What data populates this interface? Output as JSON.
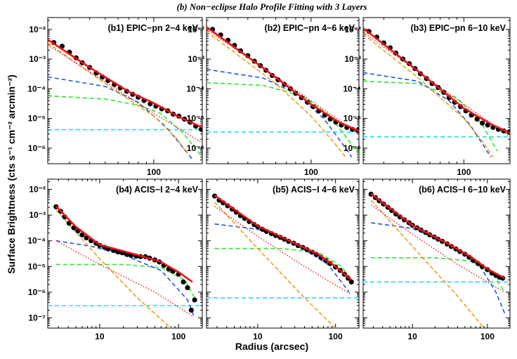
{
  "chart_data": {
    "type": "line",
    "title": "(b) Non−eclipse Halo Profile Fitting with 3 Layers",
    "xlabel": "Radius (arcsec)",
    "ylabel": "Surface Brightness (cts s⁻¹ cm⁻² arcmin⁻²)",
    "xscale": "log",
    "yscale": "log",
    "grid": false,
    "colors": {
      "data": "#000000",
      "total_fit": "#e8141a",
      "component_dotted": "#e8141a",
      "component_orange": "#ef9f1c",
      "component_blue": "#1c54e8",
      "component_green": "#2ee62e",
      "background_cyan": "#25e1e1"
    },
    "panels": [
      {
        "label": "(b1) EPIC−pn 2−4 keV",
        "xlim": [
          22,
          200
        ],
        "ylim": [
          3e-07,
          0.025
        ],
        "yticks": [
          "10⁻²",
          "10⁻³",
          "10⁻⁴",
          "10⁻⁵",
          "10⁻⁶"
        ],
        "xticks": [
          "100"
        ],
        "x": [
          24,
          27,
          30,
          33,
          36,
          40,
          44,
          48,
          52,
          57,
          62,
          68,
          74,
          80,
          87,
          95,
          103,
          112,
          122,
          132,
          143,
          155,
          168,
          182,
          197
        ],
        "y": [
          0.0036,
          0.0027,
          0.0017,
          0.0011,
          0.00075,
          0.00052,
          0.00034,
          0.00025,
          0.00019,
          0.00014,
          0.000107,
          8.2e-05,
          6.5e-05,
          5.2e-05,
          4e-05,
          3.1e-05,
          2.6e-05,
          2.1e-05,
          1.8e-05,
          1.4e-05,
          1.2e-05,
          9.5e-06,
          7.5e-06,
          5.5e-06,
          4.3e-06
        ],
        "total": [
          [
            22,
            0.0045
          ],
          [
            40,
            0.00052
          ],
          [
            70,
            8e-05
          ],
          [
            100,
            3.3e-05
          ],
          [
            140,
            1.2e-05
          ],
          [
            200,
            5e-06
          ]
        ],
        "dotted": [
          [
            22,
            0.003
          ],
          [
            100,
            1.5e-05
          ],
          [
            200,
            1.5e-06
          ]
        ],
        "orange": [
          [
            22,
            0.0035
          ],
          [
            50,
            0.00015
          ],
          [
            100,
            1.2e-05
          ],
          [
            140,
            2e-06
          ],
          [
            160,
            7e-07
          ]
        ],
        "blue": [
          [
            22,
            0.00025
          ],
          [
            50,
            0.00012
          ],
          [
            80,
            3.5e-05
          ],
          [
            120,
            5e-06
          ],
          [
            175,
            4e-07
          ]
        ],
        "green": [
          [
            22,
            5.8e-05
          ],
          [
            50,
            4.5e-05
          ],
          [
            80,
            2.8e-05
          ],
          [
            110,
            1.5e-05
          ],
          [
            150,
            3.5e-06
          ],
          [
            200,
            5e-07
          ]
        ],
        "cyan": 4.2e-06
      },
      {
        "label": "(b2) EPIC−pn 4−6 keV",
        "xlim": [
          22,
          200
        ],
        "ylim": [
          3e-07,
          0.025
        ],
        "yticks": [
          "10⁻²",
          "10⁻³",
          "10⁻⁴",
          "10⁻⁵",
          "10⁻⁶"
        ],
        "xticks": [
          "100"
        ],
        "x": [
          24,
          27,
          30,
          33,
          36,
          40,
          44,
          48,
          52,
          57,
          62,
          68,
          74,
          80,
          87,
          95,
          103,
          112,
          122,
          132,
          143,
          155,
          168,
          182,
          197
        ],
        "y": [
          0.01,
          0.0065,
          0.0043,
          0.0029,
          0.0019,
          0.0013,
          0.00085,
          0.0006,
          0.00042,
          0.00028,
          0.0002,
          0.00014,
          0.0001,
          7e-05,
          5e-05,
          3.5e-05,
          2.5e-05,
          1.8e-05,
          1.3e-05,
          9.5e-06,
          7.5e-06,
          6e-06,
          5e-06,
          4.3e-06,
          4e-06
        ],
        "total": [
          [
            22,
            0.012
          ],
          [
            50,
            0.0005
          ],
          [
            100,
            3e-05
          ],
          [
            150,
            7.5e-06
          ],
          [
            200,
            3.8e-06
          ]
        ],
        "dotted": [
          [
            22,
            0.01
          ],
          [
            100,
            4e-05
          ],
          [
            200,
            3e-06
          ]
        ],
        "orange": [
          [
            22,
            0.0085
          ],
          [
            60,
            0.00015
          ],
          [
            100,
            1.2e-05
          ],
          [
            140,
            1.5e-06
          ],
          [
            165,
            5e-07
          ]
        ],
        "blue": [
          [
            22,
            0.00045
          ],
          [
            50,
            0.00023
          ],
          [
            80,
            7e-05
          ],
          [
            120,
            1e-05
          ],
          [
            165,
            1e-06
          ],
          [
            180,
            5e-07
          ]
        ],
        "green": [
          [
            22,
            0.00016
          ],
          [
            50,
            0.00013
          ],
          [
            90,
            5.5e-05
          ],
          [
            130,
            1.3e-05
          ],
          [
            170,
            2e-06
          ],
          [
            200,
            6e-07
          ]
        ],
        "cyan": 3.5e-06
      },
      {
        "label": "(b3) EPIC−pn 6−10 keV",
        "xlim": [
          22,
          200
        ],
        "ylim": [
          3e-07,
          0.025
        ],
        "yticks": [
          "10⁻²",
          "10⁻³",
          "10⁻⁴",
          "10⁻⁵",
          "10⁻⁶"
        ],
        "xticks": [
          "100"
        ],
        "x": [
          24,
          27,
          30,
          33,
          36,
          40,
          44,
          48,
          52,
          57,
          62,
          68,
          74,
          80,
          87,
          95,
          103,
          112,
          122,
          132,
          143,
          155,
          168,
          182,
          197
        ],
        "y": [
          0.0085,
          0.0055,
          0.0035,
          0.0024,
          0.0016,
          0.001,
          0.0007,
          0.00048,
          0.00032,
          0.00022,
          0.00015,
          0.00011,
          7.5e-05,
          5e-05,
          3.5e-05,
          2.5e-05,
          1.8e-05,
          1.3e-05,
          9.5e-06,
          7e-06,
          6e-06,
          5e-06,
          4.3e-06,
          3.8e-06,
          3.5e-06
        ],
        "total": [
          [
            22,
            0.011
          ],
          [
            50,
            0.0004
          ],
          [
            100,
            2.2e-05
          ],
          [
            150,
            6.5e-06
          ],
          [
            200,
            3.2e-06
          ]
        ],
        "dotted": [
          [
            22,
            0.008
          ],
          [
            100,
            3e-05
          ],
          [
            200,
            2.5e-06
          ]
        ],
        "orange": [
          [
            22,
            0.007
          ],
          [
            50,
            0.00024
          ],
          [
            100,
            1e-05
          ],
          [
            135,
            1.5e-06
          ],
          [
            155,
            5e-07
          ]
        ],
        "blue": [
          [
            22,
            0.00035
          ],
          [
            50,
            0.00018
          ],
          [
            80,
            4e-05
          ],
          [
            110,
            6e-06
          ],
          [
            150,
            5e-07
          ]
        ],
        "green": [
          [
            22,
            0.00018
          ],
          [
            50,
            0.00015
          ],
          [
            90,
            5e-05
          ],
          [
            130,
            7e-06
          ],
          [
            165,
            8e-07
          ]
        ],
        "cyan": 2.4e-06
      },
      {
        "label": "(b4) ACIS−I 2−4 keV",
        "xlim": [
          2.2,
          200
        ],
        "ylim": [
          4e-08,
          0.025
        ],
        "yticks": [
          "10⁻²",
          "10⁻³",
          "10⁻⁴",
          "10⁻⁵",
          "10⁻⁶",
          "10⁻⁷"
        ],
        "xticks": [
          "10",
          "100"
        ],
        "x": [
          2.8,
          3.2,
          3.6,
          4.1,
          4.7,
          5.3,
          6,
          6.8,
          7.8,
          9,
          10,
          11.5,
          13,
          15,
          17,
          19.5,
          22,
          25,
          29,
          33,
          38,
          43,
          50,
          57,
          65,
          75,
          85,
          100,
          115,
          130,
          145,
          160
        ],
        "y": [
          0.0021,
          0.0014,
          0.00085,
          0.00048,
          0.00032,
          0.00024,
          0.00017,
          0.00013,
          0.0001,
          8e-05,
          6.6e-05,
          5.6e-05,
          4.8e-05,
          4.2e-05,
          3.7e-05,
          3.4e-05,
          3e-05,
          2.7e-05,
          2.5e-05,
          2.4e-05,
          2.4e-05,
          2.1e-05,
          1.8e-05,
          1.5e-05,
          1.1e-05,
          8e-06,
          6.5e-06,
          5e-06,
          2.5e-06,
          1.5e-06,
          2e-07,
          5e-07
        ],
        "total": [
          [
            2.8,
            0.0022
          ],
          [
            5,
            0.00035
          ],
          [
            10,
            7e-05
          ],
          [
            30,
            2.8e-05
          ],
          [
            60,
            1.5e-05
          ],
          [
            100,
            6e-06
          ],
          [
            150,
            2.5e-06
          ]
        ],
        "dotted": [
          [
            2.8,
            0.0001
          ],
          [
            10,
            1.2e-05
          ],
          [
            50,
            1e-06
          ],
          [
            150,
            1.2e-07
          ]
        ],
        "orange": [
          [
            2.8,
            0.0016
          ],
          [
            10,
            2e-05
          ],
          [
            30,
            6e-07
          ],
          [
            80,
            4e-08
          ]
        ],
        "blue": [
          [
            2.8,
            0.0001
          ],
          [
            8,
            6e-05
          ],
          [
            20,
            2.8e-05
          ],
          [
            60,
            7e-06
          ],
          [
            130,
            5e-07
          ],
          [
            160,
            1e-07
          ]
        ],
        "green": [
          [
            2.8,
            1.2e-05
          ],
          [
            20,
            1.2e-05
          ],
          [
            60,
            9e-06
          ],
          [
            120,
            3e-06
          ],
          [
            160,
            6e-07
          ]
        ],
        "cyan": 3e-07
      },
      {
        "label": "(b5) ACIS−I 4−6 keV",
        "xlim": [
          2.2,
          200
        ],
        "ylim": [
          4e-08,
          0.025
        ],
        "yticks": [],
        "xticks": [
          "10",
          "100"
        ],
        "x": [
          2.8,
          3.2,
          3.6,
          4.1,
          4.7,
          5.3,
          6,
          6.8,
          7.8,
          9,
          10,
          11.5,
          13,
          15,
          17,
          19.5,
          22,
          25,
          29,
          33,
          38,
          43,
          50,
          57,
          65,
          75,
          85,
          100,
          115,
          130,
          145,
          160
        ],
        "y": [
          0.0055,
          0.0038,
          0.003,
          0.0023,
          0.0017,
          0.0013,
          0.00095,
          0.00074,
          0.00056,
          0.00043,
          0.00035,
          0.00028,
          0.00023,
          0.00019,
          0.00016,
          0.000135,
          0.000115,
          9.5e-05,
          8e-05,
          6.5e-05,
          5.5e-05,
          4.5e-05,
          3.6e-05,
          2.9e-05,
          2.2e-05,
          1.7e-05,
          1.3e-05,
          9.5e-06,
          7e-06,
          5e-06,
          3.5e-06,
          2.5e-06
        ],
        "total": [
          [
            2.8,
            0.0058
          ],
          [
            10,
            0.00038
          ],
          [
            30,
            8e-05
          ],
          [
            60,
            3e-05
          ],
          [
            100,
            1e-05
          ],
          [
            160,
            3e-06
          ]
        ],
        "dotted": [
          [
            2.8,
            0.0022
          ],
          [
            10,
            0.00015
          ],
          [
            40,
            1e-05
          ],
          [
            160,
            8e-07
          ]
        ],
        "orange": [
          [
            2.8,
            0.0032
          ],
          [
            10,
            5e-05
          ],
          [
            40,
            6e-07
          ],
          [
            100,
            4e-08
          ]
        ],
        "blue": [
          [
            2.8,
            0.00045
          ],
          [
            10,
            0.00028
          ],
          [
            30,
            8e-05
          ],
          [
            80,
            1.2e-05
          ],
          [
            150,
            1e-06
          ]
        ],
        "green": [
          [
            2.8,
            5e-05
          ],
          [
            20,
            5e-05
          ],
          [
            60,
            3.5e-05
          ],
          [
            120,
            1e-05
          ],
          [
            160,
            3e-06
          ]
        ],
        "cyan": 6e-07
      },
      {
        "label": "(b6) ACIS−I 6−10 keV",
        "xlim": [
          2.2,
          200
        ],
        "ylim": [
          4e-08,
          0.025
        ],
        "yticks": [],
        "xticks": [
          "10",
          "100"
        ],
        "x": [
          2.8,
          3.2,
          3.6,
          4.1,
          4.7,
          5.3,
          6,
          6.8,
          7.8,
          9,
          10,
          11.5,
          13,
          15,
          17,
          19.5,
          22,
          25,
          29,
          33,
          38,
          43,
          50,
          57,
          65,
          75,
          85,
          100,
          115,
          130,
          145,
          160
        ],
        "y": [
          0.0065,
          0.0048,
          0.0036,
          0.0027,
          0.002,
          0.0015,
          0.0011,
          0.00085,
          0.00065,
          0.0005,
          0.0004,
          0.00032,
          0.00026,
          0.00021,
          0.00017,
          0.00014,
          0.000115,
          9.5e-05,
          7.5e-05,
          6e-05,
          4.8e-05,
          3.8e-05,
          3e-05,
          2.3e-05,
          1.7e-05,
          1.3e-05,
          1e-05,
          7.5e-06,
          5.5e-06,
          4.5e-06,
          3.8e-06,
          3.5e-06
        ],
        "total": [
          [
            2.8,
            0.0068
          ],
          [
            10,
            0.0004
          ],
          [
            30,
            7.5e-05
          ],
          [
            60,
            2.4e-05
          ],
          [
            100,
            8e-06
          ],
          [
            170,
            3.5e-06
          ]
        ],
        "dotted": [
          [
            2.8,
            0.0025
          ],
          [
            10,
            0.00018
          ],
          [
            40,
            1.2e-05
          ],
          [
            170,
            1e-06
          ]
        ],
        "orange": [
          [
            2.8,
            0.0038
          ],
          [
            10,
            6e-05
          ],
          [
            40,
            7e-07
          ],
          [
            90,
            4e-08
          ]
        ],
        "blue": [
          [
            2.8,
            0.0005
          ],
          [
            10,
            0.0003
          ],
          [
            30,
            8e-05
          ],
          [
            80,
            1e-05
          ],
          [
            130,
            1e-06
          ],
          [
            170,
            1.5e-07
          ]
        ],
        "green": [
          [
            2.8,
            2.2e-05
          ],
          [
            20,
            2.2e-05
          ],
          [
            60,
            1.6e-05
          ],
          [
            120,
            5e-06
          ],
          [
            170,
            1e-06
          ]
        ],
        "cyan": 2.5e-06
      }
    ]
  }
}
